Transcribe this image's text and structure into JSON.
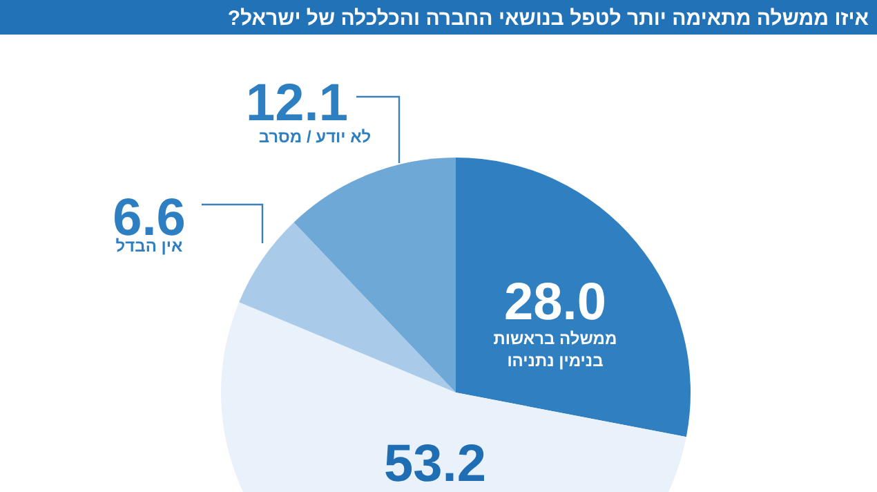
{
  "chart_data": {
    "type": "pie",
    "title": "איזו ממשלה מתאימה יותר לטפל בנושאי החברה והכלכלה של ישראל?",
    "categories": [
      "ממשלה בראשות בנימין נתניהו",
      null,
      "אין הבדל",
      "לא יודע / מסרב"
    ],
    "values": [
      28.0,
      53.2,
      6.6,
      12.1
    ],
    "colors": [
      "#2f7fc1",
      "#e9f2fb",
      "#a9cbe9",
      "#6ea8d6"
    ],
    "value_labels": [
      "28.0",
      "53.2",
      "6.6",
      "12.1"
    ]
  }
}
